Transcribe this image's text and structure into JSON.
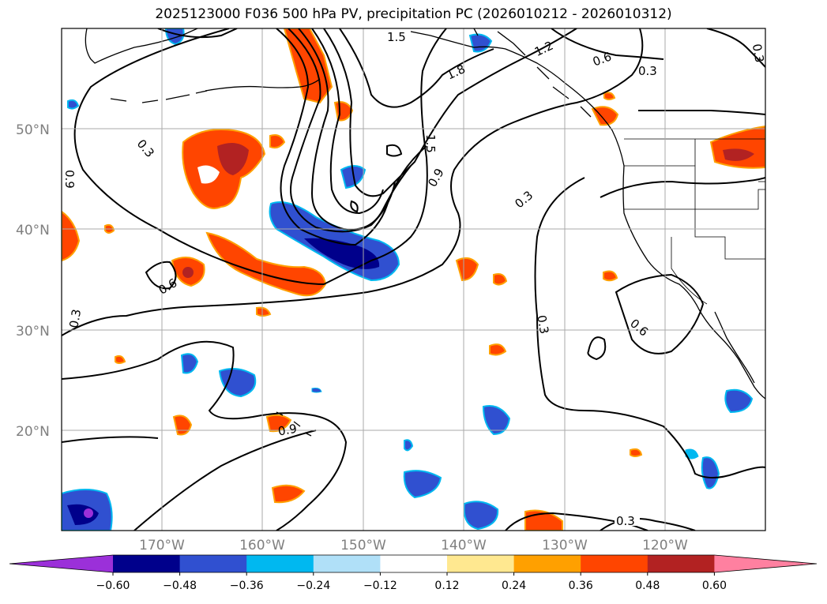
{
  "title": "2025123000 F036 500 hPa PV, precipitation PC (2026010212 - 2026010312)",
  "map": {
    "lat_labels": [
      "50°N",
      "40°N",
      "30°N",
      "20°N"
    ],
    "lon_labels": [
      "170°W",
      "160°W",
      "150°W",
      "140°W",
      "130°W",
      "120°W"
    ],
    "contour_labels": [
      "1.5",
      "1.2",
      "0.6",
      "0.3",
      "0.3",
      "1.8",
      "1.5",
      "0.9",
      "0.3",
      "0.6",
      "0.3",
      "0.9",
      "0.3",
      "0.6",
      "0.9",
      "0.3"
    ]
  },
  "colorbar": {
    "ticks": [
      "−0.60",
      "−0.48",
      "−0.36",
      "−0.24",
      "−0.12",
      "0.12",
      "0.24",
      "0.36",
      "0.48",
      "0.60"
    ],
    "colors": [
      "#9b30d9",
      "#00008b",
      "#3050d0",
      "#00b8f0",
      "#b0e0f8",
      "#ffffff",
      "#ffe890",
      "#ffa000",
      "#ff4500",
      "#b22222",
      "#ff80a0"
    ]
  }
}
